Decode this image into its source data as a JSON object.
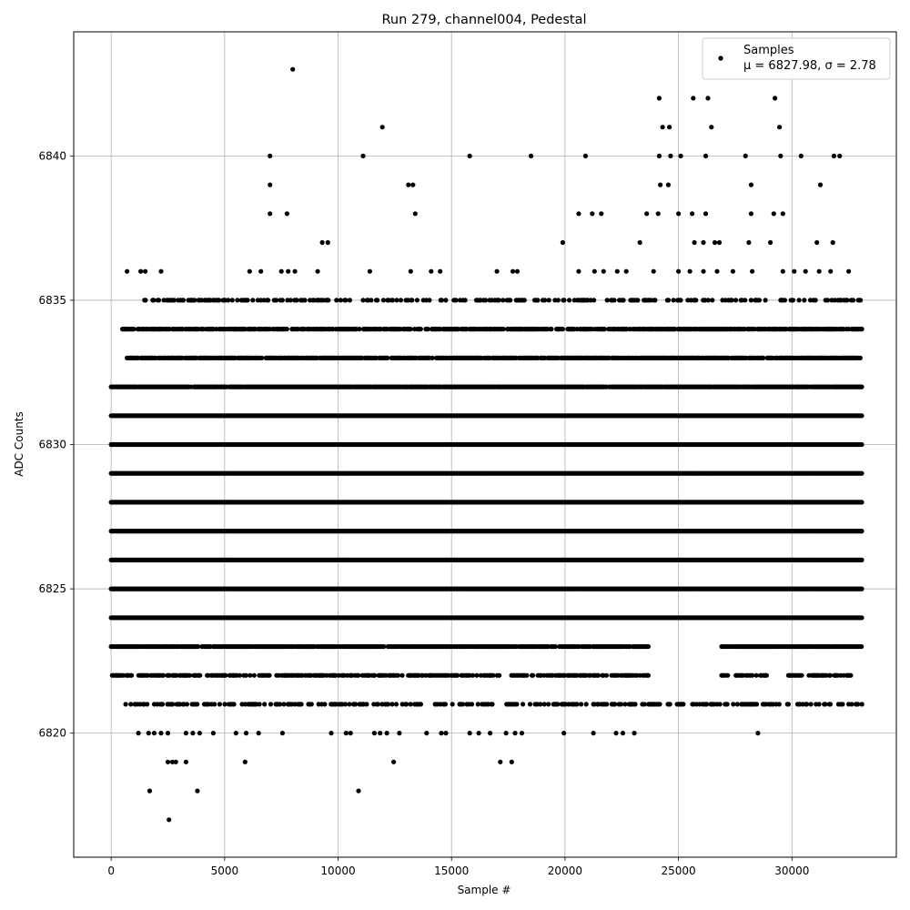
{
  "chart_data": {
    "type": "scatter",
    "title": "Run 279, channel004, Pedestal",
    "xlabel": "Sample #",
    "ylabel": "ADC Counts",
    "xlim": [
      -1650,
      34600
    ],
    "ylim": [
      6815.7,
      6844.3
    ],
    "x_ticks": [
      0,
      5000,
      10000,
      15000,
      20000,
      25000,
      30000
    ],
    "y_ticks": [
      6820,
      6825,
      6830,
      6835,
      6840
    ],
    "grid": true,
    "legend": {
      "placement": "top-right",
      "entries": [
        {
          "line1": "Samples",
          "line2": "μ = 6827.98, σ = 2.78"
        }
      ]
    },
    "colors": {
      "points": "#000000",
      "grid": "#b0b0b0"
    },
    "series": [
      {
        "name": "Samples",
        "bands": [
          {
            "y": 6821,
            "ranges": [
              [
                100,
                33100
              ]
            ],
            "density": 0.35
          },
          {
            "y": 6822,
            "ranges": [
              [
                0,
                23700
              ],
              [
                26900,
                28900
              ],
              [
                29800,
                32600
              ]
            ],
            "density": 0.55
          },
          {
            "y": 6823,
            "ranges": [
              [
                0,
                23700
              ],
              [
                26900,
                33100
              ]
            ],
            "density": 0.85
          },
          {
            "y": 6824,
            "ranges": [
              [
                0,
                33100
              ]
            ],
            "density": 1.0
          },
          {
            "y": 6825,
            "ranges": [
              [
                0,
                33100
              ]
            ],
            "density": 1.0
          },
          {
            "y": 6826,
            "ranges": [
              [
                0,
                33100
              ]
            ],
            "density": 1.0
          },
          {
            "y": 6827,
            "ranges": [
              [
                0,
                33100
              ]
            ],
            "density": 1.0
          },
          {
            "y": 6828,
            "ranges": [
              [
                0,
                33100
              ]
            ],
            "density": 1.0
          },
          {
            "y": 6829,
            "ranges": [
              [
                0,
                33100
              ]
            ],
            "density": 1.0
          },
          {
            "y": 6830,
            "ranges": [
              [
                0,
                33100
              ]
            ],
            "density": 1.0
          },
          {
            "y": 6831,
            "ranges": [
              [
                0,
                33100
              ]
            ],
            "density": 1.0
          },
          {
            "y": 6832,
            "ranges": [
              [
                0,
                33100
              ]
            ],
            "density": 0.95
          },
          {
            "y": 6833,
            "ranges": [
              [
                700,
                33100
              ]
            ],
            "density": 0.8
          },
          {
            "y": 6834,
            "ranges": [
              [
                500,
                33100
              ]
            ],
            "density": 0.75
          },
          {
            "y": 6835,
            "ranges": [
              [
                1200,
                33100
              ]
            ],
            "density": 0.3
          }
        ],
        "points": [
          [
            8000,
            6843
          ],
          [
            11950,
            6841
          ],
          [
            24150,
            6842
          ],
          [
            25650,
            6842
          ],
          [
            26300,
            6842
          ],
          [
            29250,
            6842
          ],
          [
            24300,
            6841
          ],
          [
            24600,
            6841
          ],
          [
            26450,
            6841
          ],
          [
            29450,
            6841
          ],
          [
            7000,
            6840
          ],
          [
            11100,
            6840
          ],
          [
            15800,
            6840
          ],
          [
            18500,
            6840
          ],
          [
            20900,
            6840
          ],
          [
            24150,
            6840
          ],
          [
            24650,
            6840
          ],
          [
            25100,
            6840
          ],
          [
            26200,
            6840
          ],
          [
            27950,
            6840
          ],
          [
            29500,
            6840
          ],
          [
            30400,
            6840
          ],
          [
            31850,
            6840
          ],
          [
            32100,
            6840
          ],
          [
            7000,
            6839
          ],
          [
            13100,
            6839
          ],
          [
            13300,
            6839
          ],
          [
            24200,
            6839
          ],
          [
            24550,
            6839
          ],
          [
            28200,
            6839
          ],
          [
            31250,
            6839
          ],
          [
            7000,
            6838
          ],
          [
            7750,
            6838
          ],
          [
            13400,
            6838
          ],
          [
            20600,
            6838
          ],
          [
            21200,
            6838
          ],
          [
            21600,
            6838
          ],
          [
            23600,
            6838
          ],
          [
            24100,
            6838
          ],
          [
            25000,
            6838
          ],
          [
            25600,
            6838
          ],
          [
            26200,
            6838
          ],
          [
            28200,
            6838
          ],
          [
            29200,
            6838
          ],
          [
            29600,
            6838
          ],
          [
            9300,
            6837
          ],
          [
            9550,
            6837
          ],
          [
            19900,
            6837
          ],
          [
            23300,
            6837
          ],
          [
            25700,
            6837
          ],
          [
            26100,
            6837
          ],
          [
            26600,
            6837
          ],
          [
            26800,
            6837
          ],
          [
            28100,
            6837
          ],
          [
            29050,
            6837
          ],
          [
            31100,
            6837
          ],
          [
            31800,
            6837
          ],
          [
            700,
            6836
          ],
          [
            1300,
            6836
          ],
          [
            1500,
            6836
          ],
          [
            2200,
            6836
          ],
          [
            6100,
            6836
          ],
          [
            6600,
            6836
          ],
          [
            7500,
            6836
          ],
          [
            7800,
            6836
          ],
          [
            8100,
            6836
          ],
          [
            9100,
            6836
          ],
          [
            11400,
            6836
          ],
          [
            13200,
            6836
          ],
          [
            14100,
            6836
          ],
          [
            14500,
            6836
          ],
          [
            17000,
            6836
          ],
          [
            17700,
            6836
          ],
          [
            17900,
            6836
          ],
          [
            20600,
            6836
          ],
          [
            21300,
            6836
          ],
          [
            21700,
            6836
          ],
          [
            22300,
            6836
          ],
          [
            22700,
            6836
          ],
          [
            23900,
            6836
          ],
          [
            25000,
            6836
          ],
          [
            25500,
            6836
          ],
          [
            26100,
            6836
          ],
          [
            26700,
            6836
          ],
          [
            27400,
            6836
          ],
          [
            28250,
            6836
          ],
          [
            29600,
            6836
          ],
          [
            30100,
            6836
          ],
          [
            30600,
            6836
          ],
          [
            31200,
            6836
          ],
          [
            31700,
            6836
          ],
          [
            32500,
            6836
          ],
          [
            1200,
            6820
          ],
          [
            1650,
            6820
          ],
          [
            1900,
            6820
          ],
          [
            2200,
            6820
          ],
          [
            2500,
            6820
          ],
          [
            3300,
            6820
          ],
          [
            3600,
            6820
          ],
          [
            3900,
            6820
          ],
          [
            4500,
            6820
          ],
          [
            5500,
            6820
          ],
          [
            5950,
            6820
          ],
          [
            6500,
            6820
          ],
          [
            7550,
            6820
          ],
          [
            9700,
            6820
          ],
          [
            10350,
            6820
          ],
          [
            10550,
            6820
          ],
          [
            11600,
            6820
          ],
          [
            11850,
            6820
          ],
          [
            12150,
            6820
          ],
          [
            12700,
            6820
          ],
          [
            13900,
            6820
          ],
          [
            14550,
            6820
          ],
          [
            14750,
            6820
          ],
          [
            15800,
            6820
          ],
          [
            16200,
            6820
          ],
          [
            16700,
            6820
          ],
          [
            17400,
            6820
          ],
          [
            17800,
            6820
          ],
          [
            18100,
            6820
          ],
          [
            19950,
            6820
          ],
          [
            21250,
            6820
          ],
          [
            22250,
            6820
          ],
          [
            22550,
            6820
          ],
          [
            23050,
            6820
          ],
          [
            28500,
            6820
          ],
          [
            2500,
            6819
          ],
          [
            2700,
            6819
          ],
          [
            2850,
            6819
          ],
          [
            3300,
            6819
          ],
          [
            5900,
            6819
          ],
          [
            12450,
            6819
          ],
          [
            17150,
            6819
          ],
          [
            17650,
            6819
          ],
          [
            1700,
            6818
          ],
          [
            3800,
            6818
          ],
          [
            10900,
            6818
          ],
          [
            2550,
            6817
          ]
        ]
      }
    ]
  }
}
